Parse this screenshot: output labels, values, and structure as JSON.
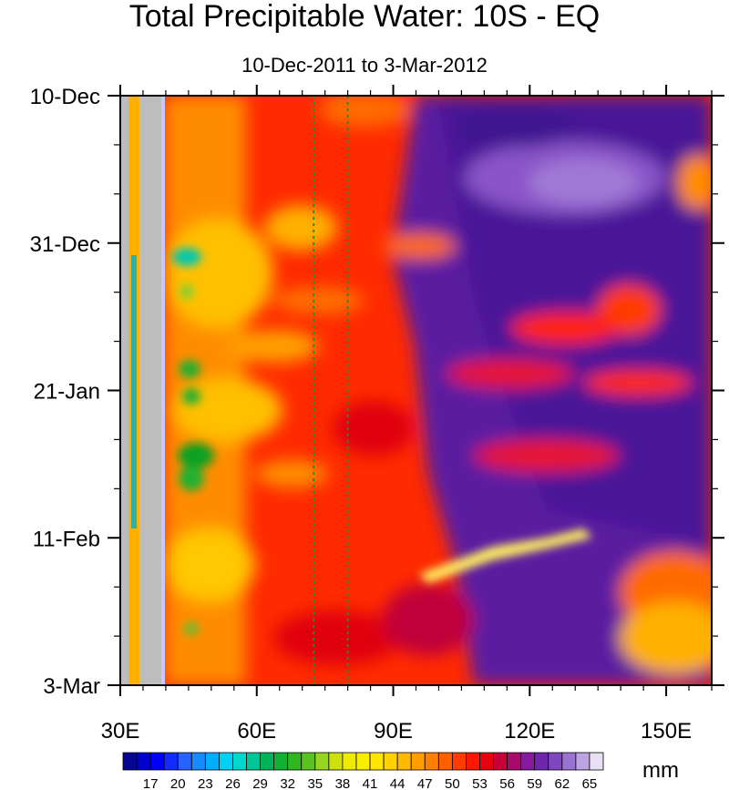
{
  "chart_data": {
    "type": "heatmap",
    "title": "Total Precipitable Water: 10S - EQ",
    "subtitle": "10-Dec-2011 to 3-Mar-2012",
    "x_axis": {
      "range": [
        30,
        160
      ],
      "ticks": [
        {
          "value": 30,
          "label": "30E"
        },
        {
          "value": 60,
          "label": "60E"
        },
        {
          "value": 90,
          "label": "90E"
        },
        {
          "value": 120,
          "label": "120E"
        },
        {
          "value": 150,
          "label": "150E"
        }
      ]
    },
    "y_axis": {
      "range_days": [
        0,
        84
      ],
      "reversed": true,
      "ticks": [
        {
          "value": 0,
          "label": "10-Dec"
        },
        {
          "value": 21,
          "label": "31-Dec"
        },
        {
          "value": 42,
          "label": "21-Jan"
        },
        {
          "value": 63,
          "label": "11-Feb"
        },
        {
          "value": 84,
          "label": "3-Mar"
        }
      ]
    },
    "reference_lines_lon": [
      72.5,
      80
    ],
    "colorbar": {
      "unit": "mm",
      "min": 14,
      "max": 66.5,
      "step": 1.5,
      "labels": [
        "17",
        "20",
        "23",
        "26",
        "29",
        "32",
        "35",
        "38",
        "41",
        "44",
        "47",
        "50",
        "53",
        "56",
        "59",
        "62",
        "65"
      ],
      "label_values": [
        17,
        20,
        23,
        26,
        29,
        32,
        35,
        38,
        41,
        44,
        47,
        50,
        53,
        56,
        59,
        62,
        65
      ]
    },
    "missing_color": "#bdbdbd"
  }
}
